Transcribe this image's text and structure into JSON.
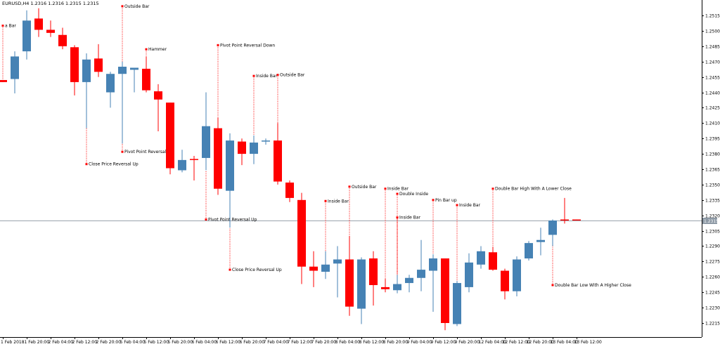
{
  "header": {
    "symbol_text": "EURUSD,H4  1.2316 1.2316 1.2315 1.2315"
  },
  "current_price_label": "1.2315",
  "colors": {
    "bull": "#4682b4",
    "bear": "#ff0000",
    "annotation": "#ff0000",
    "axis": "#000000",
    "current_line": "#9aa3ad",
    "current_tag_bg": "#8c98a4"
  },
  "chart_data": {
    "type": "candlestick",
    "symbol": "EURUSD",
    "timeframe": "H4",
    "ylim": [
      1.2205,
      1.2525
    ],
    "y_ticks": [
      "1.2515",
      "1.2500",
      "1.2485",
      "1.2470",
      "1.2455",
      "1.2440",
      "1.2425",
      "1.2410",
      "1.2395",
      "1.2380",
      "1.2365",
      "1.2350",
      "1.2335",
      "1.2320",
      "1.2305",
      "1.2290",
      "1.2275",
      "1.2260",
      "1.2245",
      "1.2230",
      "1.2215"
    ],
    "x_ticks": [
      {
        "label": "1 Feb 2018",
        "index": 0
      },
      {
        "label": "1 Feb 20:00",
        "index": 2
      },
      {
        "label": "2 Feb 04:00",
        "index": 4
      },
      {
        "label": "2 Feb 12:00",
        "index": 6
      },
      {
        "label": "2 Feb 20:00",
        "index": 8
      },
      {
        "label": "5 Feb 04:00",
        "index": 10
      },
      {
        "label": "5 Feb 12:00",
        "index": 12
      },
      {
        "label": "5 Feb 20:00",
        "index": 14
      },
      {
        "label": "6 Feb 04:00",
        "index": 16
      },
      {
        "label": "6 Feb 12:00",
        "index": 18
      },
      {
        "label": "6 Feb 20:00",
        "index": 20
      },
      {
        "label": "7 Feb 04:00",
        "index": 22
      },
      {
        "label": "7 Feb 12:00",
        "index": 24
      },
      {
        "label": "7 Feb 20:00",
        "index": 26
      },
      {
        "label": "8 Feb 04:00",
        "index": 28
      },
      {
        "label": "8 Feb 12:00",
        "index": 30
      },
      {
        "label": "8 Feb 20:00",
        "index": 32
      },
      {
        "label": "9 Feb 04:00",
        "index": 34
      },
      {
        "label": "9 Feb 12:00",
        "index": 36
      },
      {
        "label": "9 Feb 20:00",
        "index": 38
      },
      {
        "label": "12 Feb 04:00",
        "index": 40
      },
      {
        "label": "12 Feb 12:00",
        "index": 42
      },
      {
        "label": "12 Feb 20:00",
        "index": 44
      },
      {
        "label": "13 Feb 04:00",
        "index": 46
      },
      {
        "label": "13 Feb 12:00",
        "index": 48
      }
    ],
    "candles": [
      {
        "o": 1.2452,
        "h": 1.2452,
        "l": 1.245,
        "c": 1.245
      },
      {
        "o": 1.2453,
        "h": 1.248,
        "l": 1.2439,
        "c": 1.2475
      },
      {
        "o": 1.248,
        "h": 1.252,
        "l": 1.2472,
        "c": 1.251
      },
      {
        "o": 1.2512,
        "h": 1.2522,
        "l": 1.2494,
        "c": 1.2501
      },
      {
        "o": 1.2501,
        "h": 1.251,
        "l": 1.2494,
        "c": 1.2498
      },
      {
        "o": 1.2496,
        "h": 1.2503,
        "l": 1.2482,
        "c": 1.2485
      },
      {
        "o": 1.2484,
        "h": 1.2486,
        "l": 1.2437,
        "c": 1.245
      },
      {
        "o": 1.245,
        "h": 1.2478,
        "l": 1.2405,
        "c": 1.2472
      },
      {
        "o": 1.2473,
        "h": 1.2487,
        "l": 1.2455,
        "c": 1.246
      },
      {
        "o": 1.244,
        "h": 1.246,
        "l": 1.2425,
        "c": 1.2458
      },
      {
        "o": 1.2458,
        "h": 1.247,
        "l": 1.239,
        "c": 1.2465
      },
      {
        "o": 1.2462,
        "h": 1.2463,
        "l": 1.244,
        "c": 1.2464
      },
      {
        "o": 1.2463,
        "h": 1.2475,
        "l": 1.244,
        "c": 1.2442
      },
      {
        "o": 1.2441,
        "h": 1.2448,
        "l": 1.2402,
        "c": 1.2433
      },
      {
        "o": 1.243,
        "h": 1.243,
        "l": 1.236,
        "c": 1.2366
      },
      {
        "o": 1.2364,
        "h": 1.2384,
        "l": 1.2362,
        "c": 1.2374
      },
      {
        "o": 1.2375,
        "h": 1.2378,
        "l": 1.2354,
        "c": 1.2374
      },
      {
        "o": 1.2376,
        "h": 1.244,
        "l": 1.2364,
        "c": 1.2407
      },
      {
        "o": 1.2405,
        "h": 1.2415,
        "l": 1.234,
        "c": 1.2346
      },
      {
        "o": 1.2344,
        "h": 1.24,
        "l": 1.2308,
        "c": 1.2393
      },
      {
        "o": 1.2392,
        "h": 1.2395,
        "l": 1.2369,
        "c": 1.238
      },
      {
        "o": 1.238,
        "h": 1.2398,
        "l": 1.237,
        "c": 1.2391
      },
      {
        "o": 1.2393,
        "h": 1.2395,
        "l": 1.2389,
        "c": 1.2393
      },
      {
        "o": 1.2393,
        "h": 1.241,
        "l": 1.235,
        "c": 1.2353
      },
      {
        "o": 1.2352,
        "h": 1.2354,
        "l": 1.2333,
        "c": 1.2337
      },
      {
        "o": 1.2335,
        "h": 1.2342,
        "l": 1.2253,
        "c": 1.227
      },
      {
        "o": 1.227,
        "h": 1.2285,
        "l": 1.225,
        "c": 1.2266
      },
      {
        "o": 1.2265,
        "h": 1.2285,
        "l": 1.2258,
        "c": 1.2272
      },
      {
        "o": 1.2273,
        "h": 1.229,
        "l": 1.224,
        "c": 1.2277
      },
      {
        "o": 1.2277,
        "h": 1.23,
        "l": 1.2222,
        "c": 1.2231
      },
      {
        "o": 1.2229,
        "h": 1.2279,
        "l": 1.2214,
        "c": 1.2277
      },
      {
        "o": 1.2278,
        "h": 1.2285,
        "l": 1.2232,
        "c": 1.2252
      },
      {
        "o": 1.225,
        "h": 1.2258,
        "l": 1.2245,
        "c": 1.2248
      },
      {
        "o": 1.2247,
        "h": 1.2262,
        "l": 1.2244,
        "c": 1.2253
      },
      {
        "o": 1.2254,
        "h": 1.2262,
        "l": 1.2245,
        "c": 1.2259
      },
      {
        "o": 1.2259,
        "h": 1.2296,
        "l": 1.2246,
        "c": 1.2267
      },
      {
        "o": 1.2266,
        "h": 1.2282,
        "l": 1.2226,
        "c": 1.2278
      },
      {
        "o": 1.2278,
        "h": 1.2278,
        "l": 1.2208,
        "c": 1.2215
      },
      {
        "o": 1.2214,
        "h": 1.2256,
        "l": 1.2212,
        "c": 1.2254
      },
      {
        "o": 1.225,
        "h": 1.2283,
        "l": 1.2245,
        "c": 1.2274
      },
      {
        "o": 1.2272,
        "h": 1.229,
        "l": 1.2268,
        "c": 1.2285
      },
      {
        "o": 1.2284,
        "h": 1.2289,
        "l": 1.2266,
        "c": 1.2267
      },
      {
        "o": 1.2266,
        "h": 1.2268,
        "l": 1.2238,
        "c": 1.2246
      },
      {
        "o": 1.2246,
        "h": 1.228,
        "l": 1.2241,
        "c": 1.2277
      },
      {
        "o": 1.2278,
        "h": 1.2295,
        "l": 1.2276,
        "c": 1.2293
      },
      {
        "o": 1.2294,
        "h": 1.2308,
        "l": 1.2281,
        "c": 1.2296
      },
      {
        "o": 1.2301,
        "h": 1.2316,
        "l": 1.229,
        "c": 1.2315
      },
      {
        "o": 1.2316,
        "h": 1.2337,
        "l": 1.2312,
        "c": 1.2315
      },
      {
        "o": 1.2316,
        "h": 1.2316,
        "l": 1.2315,
        "c": 1.2315
      }
    ],
    "current_price": 1.2315,
    "annotations": [
      {
        "index": 0,
        "price": 1.2505,
        "label": "a Bar"
      },
      {
        "index": 7,
        "price": 1.237,
        "label": "Close Price Reversal Up"
      },
      {
        "index": 10,
        "price": 1.2524,
        "label": "Outside Bar"
      },
      {
        "index": 10,
        "price": 1.2382,
        "label": "Pivot Point Reversal Up"
      },
      {
        "index": 12,
        "price": 1.2482,
        "label": "Hammer"
      },
      {
        "index": 17,
        "price": 1.2316,
        "label": "Pivot Point Reversal Up"
      },
      {
        "index": 18,
        "price": 1.2486,
        "label": "Pivot Point Reversal Down"
      },
      {
        "index": 19,
        "price": 1.2267,
        "label": "Close Price Reversal Up"
      },
      {
        "index": 21,
        "price": 1.2456,
        "label": "Inside Bar"
      },
      {
        "index": 23,
        "price": 1.2457,
        "label": "Outside Bar"
      },
      {
        "index": 27,
        "price": 1.2334,
        "label": "Inside Bar"
      },
      {
        "index": 29,
        "price": 1.2348,
        "label": "Outside Bar"
      },
      {
        "index": 32,
        "price": 1.2346,
        "label": "Inside Bar"
      },
      {
        "index": 33,
        "price": 1.2341,
        "label": "Double Inside"
      },
      {
        "index": 33,
        "price": 1.2318,
        "label": "Inside Bar"
      },
      {
        "index": 36,
        "price": 1.2335,
        "label": "Pin Bar up"
      },
      {
        "index": 38,
        "price": 1.233,
        "label": "Inside Bar"
      },
      {
        "index": 41,
        "price": 1.2346,
        "label": "Double Bar High With A Lower Close"
      },
      {
        "index": 46,
        "price": 1.2252,
        "label": "Double Bar Low With A Higher Close"
      }
    ]
  }
}
